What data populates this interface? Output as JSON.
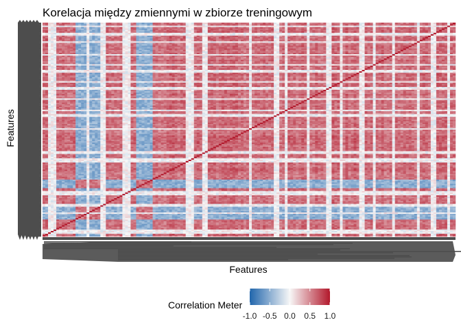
{
  "chart_data": {
    "type": "heatmap",
    "title": "Korelacja między zmiennymi w zbiorze treningowym",
    "xlabel": "Features",
    "ylabel": "Features",
    "value_range": [
      -1,
      1
    ],
    "diagonal_value": 1.0,
    "typical_offdiagonal_range": [
      0.3,
      0.8
    ],
    "weak_feature_value_range": [
      -0.2,
      0.2
    ],
    "legend": {
      "title": "Correlation Meter",
      "position": "bottom",
      "ticks": [
        "-1.0",
        "-0.5",
        "0.0",
        "0.5",
        "1.0"
      ],
      "tick_values": [
        -1.0,
        -0.5,
        0.0,
        0.5,
        1.0
      ]
    },
    "colors": {
      "low": "#2166ac",
      "mid": "#f7f7f7",
      "high": "#b2182b",
      "tick_label_ink": "#4d4d4d"
    }
  }
}
